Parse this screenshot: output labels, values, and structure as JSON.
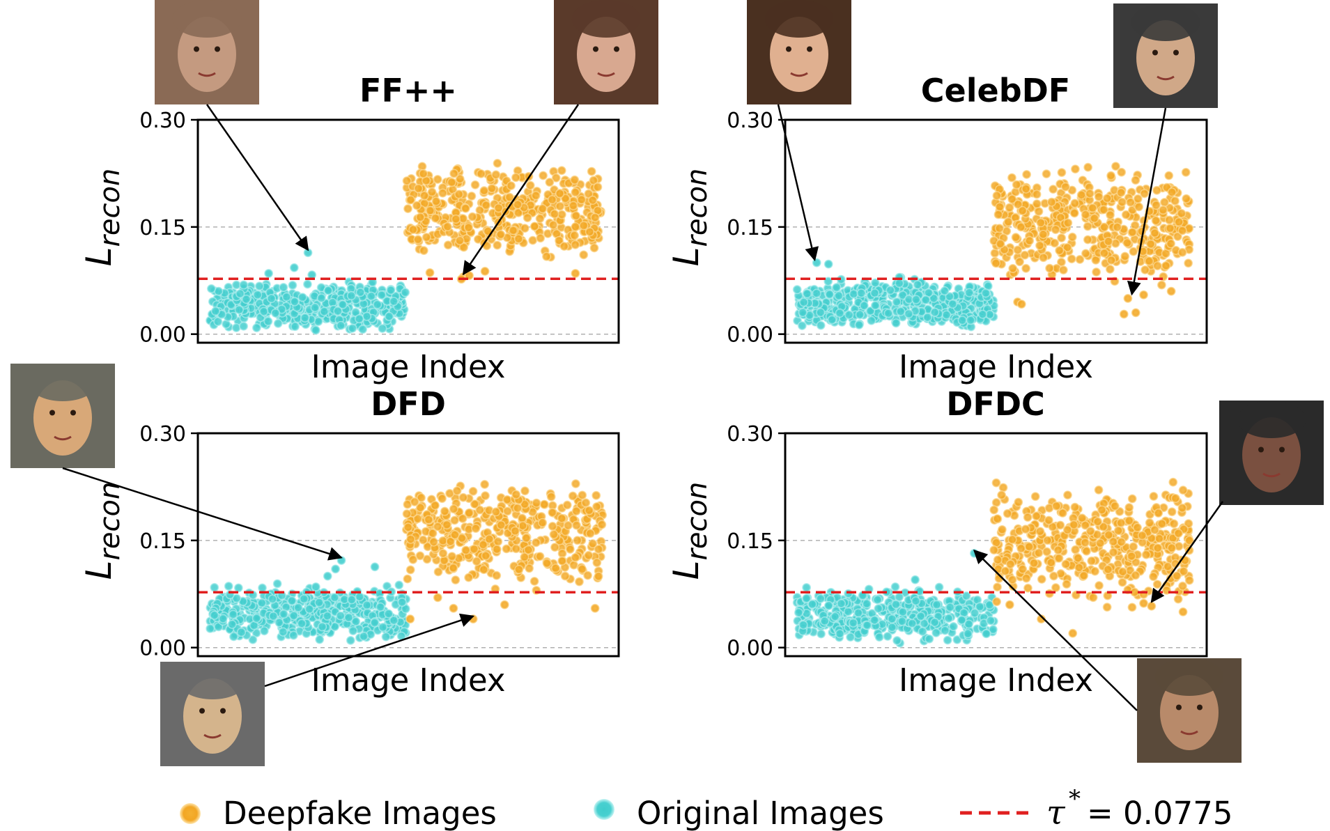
{
  "chart_data": [
    {
      "type": "scatter",
      "title": "FF++",
      "xlabel": "Image Index",
      "ylabel": "L",
      "ylabel_sub": "recon",
      "ylim": [
        -0.012,
        0.3
      ],
      "yticks": [
        "0.00",
        "0.15",
        "0.30"
      ],
      "threshold": 0.0775,
      "series": [
        {
          "name": "Original Images",
          "color": "#40cccc",
          "index_range": [
            0,
            500
          ],
          "y_range": [
            0.0,
            0.08
          ],
          "count": 420,
          "extra": [
            [
              250,
              0.114
            ],
            [
              215,
              0.093
            ],
            [
              260,
              0.083
            ],
            [
              150,
              0.085
            ]
          ]
        },
        {
          "name": "Deepfake Images",
          "color": "#f0a020",
          "index_range": [
            500,
            1000
          ],
          "y_range": [
            0.09,
            0.25
          ],
          "count": 420,
          "extra": [
            [
              645,
              0.08
            ],
            [
              640,
              0.077
            ],
            [
              660,
              0.082
            ],
            [
              560,
              0.086
            ],
            [
              930,
              0.085
            ],
            [
              700,
              0.088
            ]
          ]
        }
      ],
      "annotations": [
        {
          "label": "original-face-sample",
          "target": [
            250,
            0.114
          ]
        },
        {
          "label": "deepfake-face-sample",
          "target": [
            645,
            0.08
          ]
        }
      ]
    },
    {
      "type": "scatter",
      "title": "CelebDF",
      "xlabel": "Image Index",
      "ylabel": "L",
      "ylabel_sub": "recon",
      "ylim": [
        -0.012,
        0.3
      ],
      "yticks": [
        "0.00",
        "0.15",
        "0.30"
      ],
      "threshold": 0.0775,
      "series": [
        {
          "name": "Original Images",
          "color": "#40cccc",
          "index_range": [
            0,
            500
          ],
          "y_range": [
            0.0,
            0.085
          ],
          "count": 420,
          "extra": [
            [
              50,
              0.1
            ],
            [
              80,
              0.098
            ]
          ]
        },
        {
          "name": "Deepfake Images",
          "color": "#f0a020",
          "index_range": [
            500,
            1000
          ],
          "y_range": [
            0.06,
            0.25
          ],
          "count": 420,
          "extra": [
            [
              840,
              0.05
            ],
            [
              860,
              0.03
            ],
            [
              830,
              0.028
            ],
            [
              560,
              0.045
            ],
            [
              570,
              0.042
            ],
            [
              950,
              0.06
            ],
            [
              880,
              0.055
            ]
          ]
        }
      ],
      "annotations": [
        {
          "label": "original-face-sample",
          "target": [
            45,
            0.1
          ]
        },
        {
          "label": "deepfake-face-sample",
          "target": [
            850,
            0.052
          ]
        }
      ]
    },
    {
      "type": "scatter",
      "title": "DFD",
      "xlabel": "Image Index",
      "ylabel": "L",
      "ylabel_sub": "recon",
      "ylim": [
        -0.012,
        0.3
      ],
      "yticks": [
        "0.00",
        "0.15",
        "0.30"
      ],
      "threshold": 0.0775,
      "series": [
        {
          "name": "Original Images",
          "color": "#40cccc",
          "index_range": [
            0,
            500
          ],
          "y_range": [
            0.0,
            0.095
          ],
          "count": 420,
          "extra": [
            [
              335,
              0.122
            ],
            [
              320,
              0.11
            ],
            [
              300,
              0.1
            ],
            [
              420,
              0.113
            ],
            [
              270,
              0.085
            ]
          ]
        },
        {
          "name": "Deepfake Images",
          "color": "#f0a020",
          "index_range": [
            500,
            1000
          ],
          "y_range": [
            0.07,
            0.25
          ],
          "count": 420,
          "extra": [
            [
              670,
              0.04
            ],
            [
              620,
              0.055
            ],
            [
              510,
              0.04
            ],
            [
              750,
              0.06
            ],
            [
              980,
              0.055
            ],
            [
              580,
              0.07
            ]
          ]
        }
      ],
      "annotations": [
        {
          "label": "original-face-sample",
          "target": [
            335,
            0.122
          ]
        },
        {
          "label": "deepfake-face-sample",
          "target": [
            670,
            0.04
          ]
        }
      ]
    },
    {
      "type": "scatter",
      "title": "DFDC",
      "xlabel": "Image Index",
      "ylabel": "L",
      "ylabel_sub": "recon",
      "ylim": [
        -0.012,
        0.3
      ],
      "yticks": [
        "0.00",
        "0.15",
        "0.30"
      ],
      "threshold": 0.0775,
      "series": [
        {
          "name": "Original Images",
          "color": "#40cccc",
          "index_range": [
            0,
            500
          ],
          "y_range": [
            0.0,
            0.09
          ],
          "count": 420,
          "extra": [
            [
              450,
              0.132
            ],
            [
              300,
              0.095
            ]
          ]
        },
        {
          "name": "Deepfake Images",
          "color": "#f0a020",
          "index_range": [
            500,
            1000
          ],
          "y_range": [
            0.05,
            0.24
          ],
          "count": 420,
          "extra": [
            [
              900,
              0.058
            ],
            [
              880,
              0.062
            ],
            [
              620,
              0.04
            ],
            [
              700,
              0.02
            ],
            [
              980,
              0.05
            ],
            [
              540,
              0.06
            ]
          ]
        }
      ],
      "annotations": [
        {
          "label": "original-face-sample",
          "target": [
            450,
            0.132
          ]
        },
        {
          "label": "deepfake-face-sample",
          "target": [
            900,
            0.06
          ]
        }
      ]
    }
  ],
  "legend": {
    "placement": "bottom",
    "deepfake_label": "Deepfake Images",
    "original_label": "Original Images",
    "threshold_symbol": "τ",
    "threshold_superscript": "*",
    "threshold_value": "= 0.0775"
  },
  "colors": {
    "deepfake": "#f0a020",
    "original": "#40cccc",
    "threshold": "#e02020"
  }
}
